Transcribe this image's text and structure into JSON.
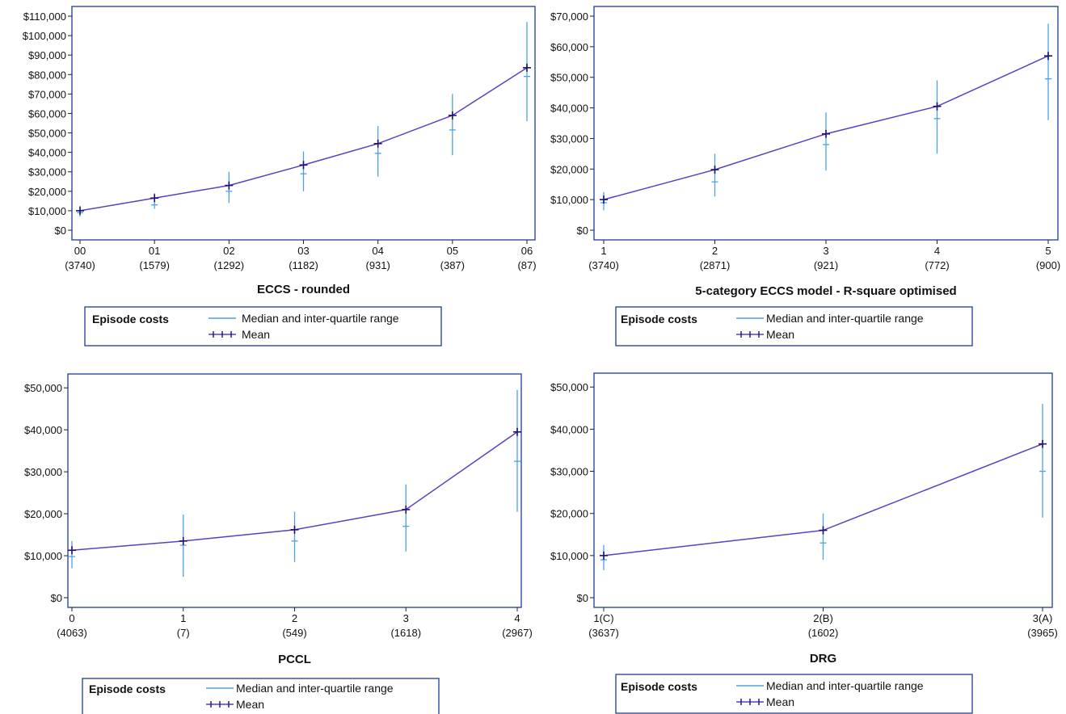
{
  "legend": {
    "title": "Episode costs",
    "median_label": "Median and inter-quartile range",
    "mean_label": "Mean"
  },
  "colors": {
    "median": "#4aa3df",
    "mean": "#5b3fc4",
    "mean_marker": "#1c1070",
    "frame": "#1f3a93",
    "legend_border": "#1f3a93"
  },
  "chart_data": [
    {
      "type": "line",
      "xlabel": "ECCS - rounded",
      "categories": [
        "00",
        "01",
        "02",
        "03",
        "04",
        "05",
        "06"
      ],
      "counts": [
        "(3740)",
        "(1579)",
        "(1292)",
        "(1182)",
        "(931)",
        "(387)",
        "(87)"
      ],
      "yticks": [
        "$0",
        "$10,000",
        "$20,000",
        "$30,000",
        "$40,000",
        "$50,000",
        "$60,000",
        "$70,000",
        "$80,000",
        "$90,000",
        "$100,000",
        "$110,000"
      ],
      "ylim": [
        0,
        110000
      ],
      "series": [
        {
          "name": "Mean",
          "values": [
            10000,
            16500,
            23000,
            33500,
            44500,
            59000,
            83500
          ]
        },
        {
          "name": "Median",
          "values": [
            9000,
            13000,
            20000,
            29000,
            39500,
            51500,
            79000
          ]
        }
      ],
      "iqr": [
        [
          7000,
          12500
        ],
        [
          11000,
          19000
        ],
        [
          14000,
          30000
        ],
        [
          20000,
          40500
        ],
        [
          27500,
          53500
        ],
        [
          38500,
          70000
        ],
        [
          56000,
          107000
        ]
      ]
    },
    {
      "type": "line",
      "xlabel": "5-category ECCS model - R-square optimised",
      "categories": [
        "1",
        "2",
        "3",
        "4",
        "5"
      ],
      "counts": [
        "(3740)",
        "(2871)",
        "(921)",
        "(772)",
        "(900)"
      ],
      "yticks": [
        "$0",
        "$10,000",
        "$20,000",
        "$30,000",
        "$40,000",
        "$50,000",
        "$60,000",
        "$70,000"
      ],
      "ylim": [
        0,
        70000
      ],
      "series": [
        {
          "name": "Mean",
          "values": [
            10000,
            19800,
            31500,
            40500,
            57000
          ]
        },
        {
          "name": "Median",
          "values": [
            9000,
            15800,
            28000,
            36500,
            49500
          ]
        }
      ],
      "iqr": [
        [
          6500,
          12500
        ],
        [
          11000,
          25000
        ],
        [
          19500,
          38500
        ],
        [
          25000,
          49000
        ],
        [
          36000,
          67500
        ]
      ]
    },
    {
      "type": "line",
      "xlabel": "PCCL",
      "categories": [
        "0",
        "1",
        "2",
        "3",
        "4"
      ],
      "counts": [
        "(4063)",
        "(7)",
        "(549)",
        "(1618)",
        "(2967)"
      ],
      "yticks": [
        "$0",
        "$10,000",
        "$20,000",
        "$30,000",
        "$40,000",
        "$50,000"
      ],
      "ylim": [
        0,
        51000
      ],
      "series": [
        {
          "name": "Mean",
          "values": [
            11300,
            13500,
            16200,
            21000,
            39500
          ]
        },
        {
          "name": "Median",
          "values": [
            9800,
            12500,
            13500,
            17000,
            32500
          ]
        }
      ],
      "iqr": [
        [
          7000,
          13500
        ],
        [
          5000,
          19800
        ],
        [
          8500,
          20500
        ],
        [
          11000,
          27000
        ],
        [
          20500,
          49500
        ]
      ]
    },
    {
      "type": "line",
      "xlabel": "DRG",
      "categories": [
        "1(C)",
        "2(B)",
        "3(A)"
      ],
      "counts": [
        "(3637)",
        "(1602)",
        "(3965)"
      ],
      "yticks": [
        "$0",
        "$10,000",
        "$20,000",
        "$30,000",
        "$40,000",
        "$50,000"
      ],
      "ylim": [
        0,
        51000
      ],
      "series": [
        {
          "name": "Mean",
          "values": [
            10000,
            16000,
            36500
          ]
        },
        {
          "name": "Median",
          "values": [
            9000,
            13000,
            30000
          ]
        }
      ],
      "iqr": [
        [
          6500,
          12500
        ],
        [
          9000,
          20000
        ],
        [
          19000,
          46000
        ]
      ]
    }
  ]
}
